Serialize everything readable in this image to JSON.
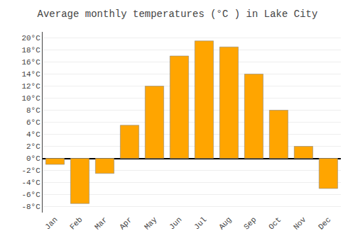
{
  "chart_data": {
    "type": "bar",
    "title": "Average monthly temperatures (°C ) in Lake City",
    "categories": [
      "Jan",
      "Feb",
      "Mar",
      "Apr",
      "May",
      "Jun",
      "Jul",
      "Aug",
      "Sep",
      "Oct",
      "Nov",
      "Dec"
    ],
    "values": [
      -1.0,
      -7.5,
      -2.5,
      5.5,
      12.0,
      17.0,
      19.5,
      18.5,
      14.0,
      8.0,
      2.0,
      -5.0
    ],
    "color": "#FFA500",
    "ylim": [
      -9,
      21
    ],
    "yticks": [
      {
        "value": -8,
        "label": "-8°C"
      },
      {
        "value": -6,
        "label": "-6°C"
      },
      {
        "value": -4,
        "label": "-4°C"
      },
      {
        "value": -2,
        "label": "-2°C"
      },
      {
        "value": 0,
        "label": "0°C"
      },
      {
        "value": 2,
        "label": "2°C"
      },
      {
        "value": 4,
        "label": "4°C"
      },
      {
        "value": 6,
        "label": "6°C"
      },
      {
        "value": 8,
        "label": "8°C"
      },
      {
        "value": 10,
        "label": "10°C"
      },
      {
        "value": 12,
        "label": "12°C"
      },
      {
        "value": 14,
        "label": "14°C"
      },
      {
        "value": 16,
        "label": "16°C"
      },
      {
        "value": 18,
        "label": "18°C"
      },
      {
        "value": 20,
        "label": "20°C"
      }
    ],
    "grid": true
  }
}
